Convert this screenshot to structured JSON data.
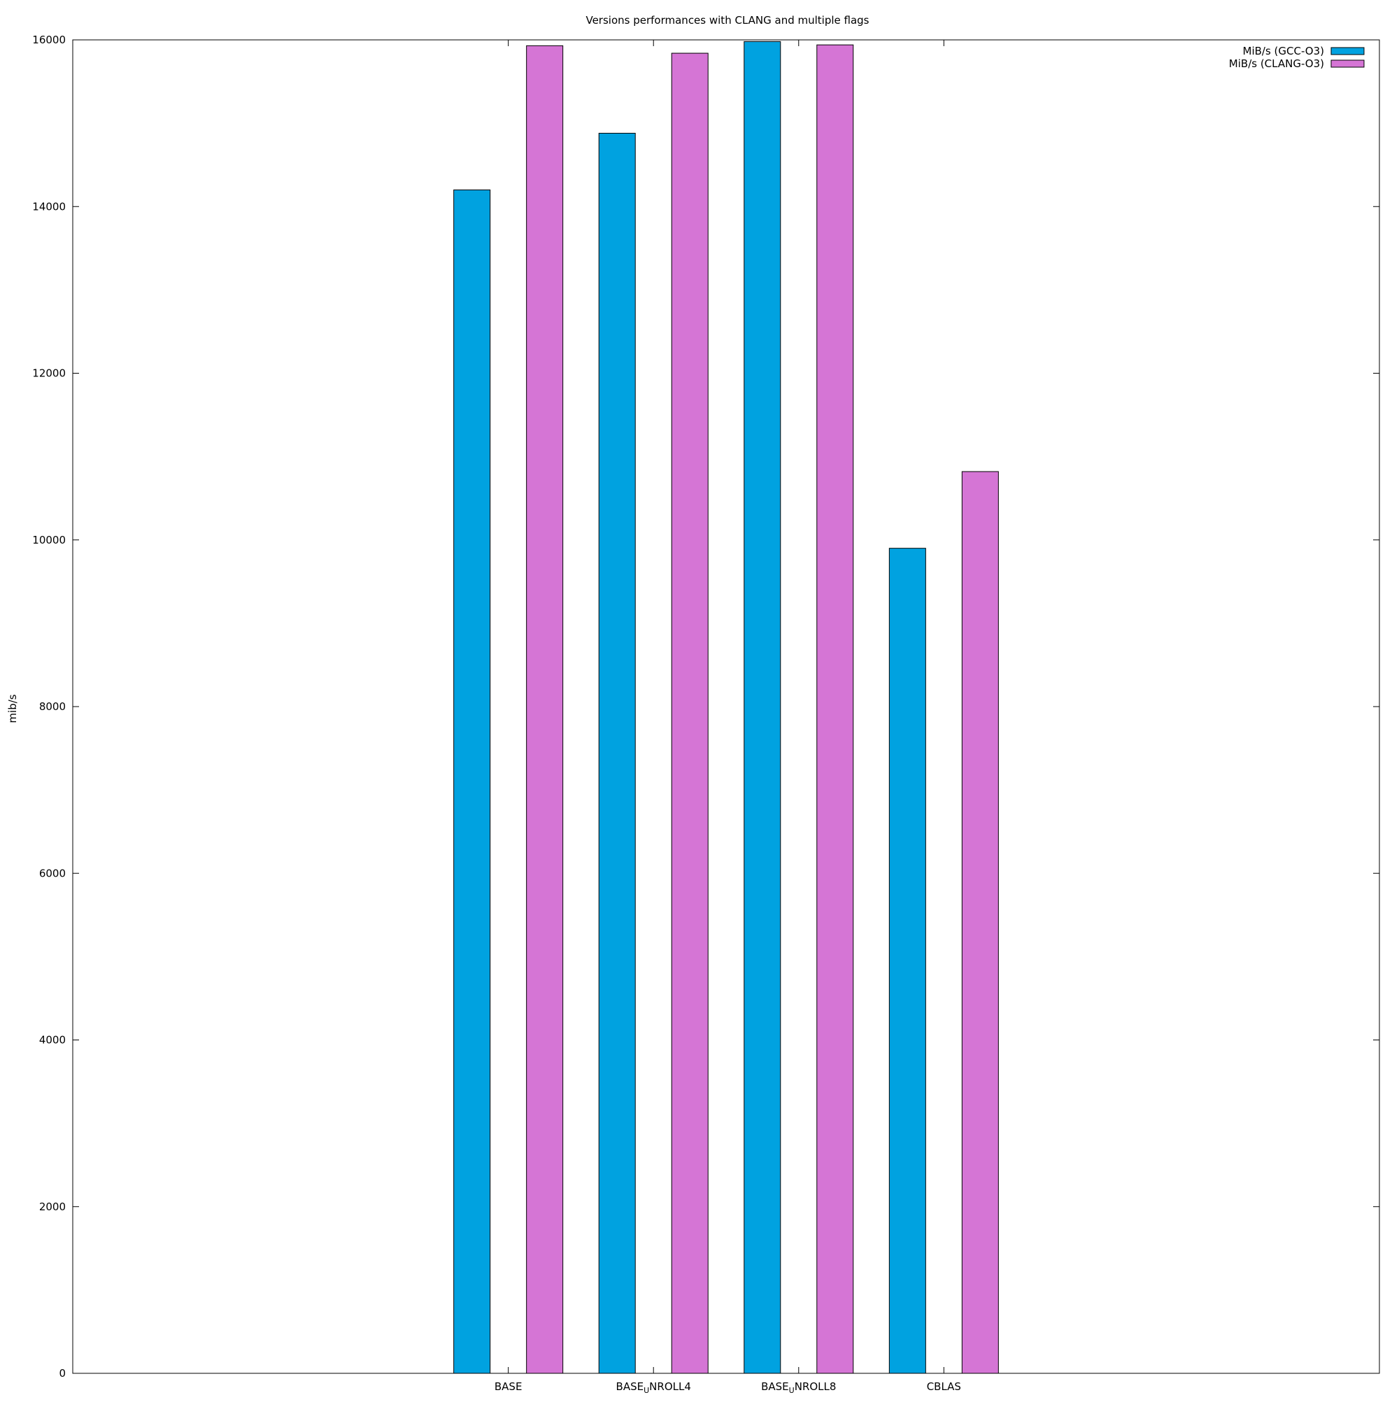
{
  "chart_data": {
    "type": "bar",
    "title": "Versions performances with CLANG and multiple flags",
    "xlabel": "",
    "ylabel": "mib/s",
    "ylim": [
      0,
      16000
    ],
    "yticks": [
      0,
      2000,
      4000,
      6000,
      8000,
      10000,
      12000,
      14000,
      16000
    ],
    "categories": [
      {
        "base": "BASE",
        "sub": "",
        "rest": ""
      },
      {
        "base": "BASE",
        "sub": "U",
        "rest": "NROLL4"
      },
      {
        "base": "BASE",
        "sub": "U",
        "rest": "NROLL8"
      },
      {
        "base": "CBLAS",
        "sub": "",
        "rest": ""
      }
    ],
    "category_slots": [
      3,
      4,
      5,
      6
    ],
    "slot_range": [
      0,
      9
    ],
    "series": [
      {
        "name": "MiB/s (GCC-O3)",
        "color": "#00a2e0",
        "values": [
          14200,
          14880,
          15980,
          9900
        ]
      },
      {
        "name": "MiB/s (CLANG-O3)",
        "color": "#d575d5",
        "values": [
          15930,
          15840,
          15940,
          10820
        ]
      }
    ],
    "legend_position": "top-right",
    "grid": false
  }
}
